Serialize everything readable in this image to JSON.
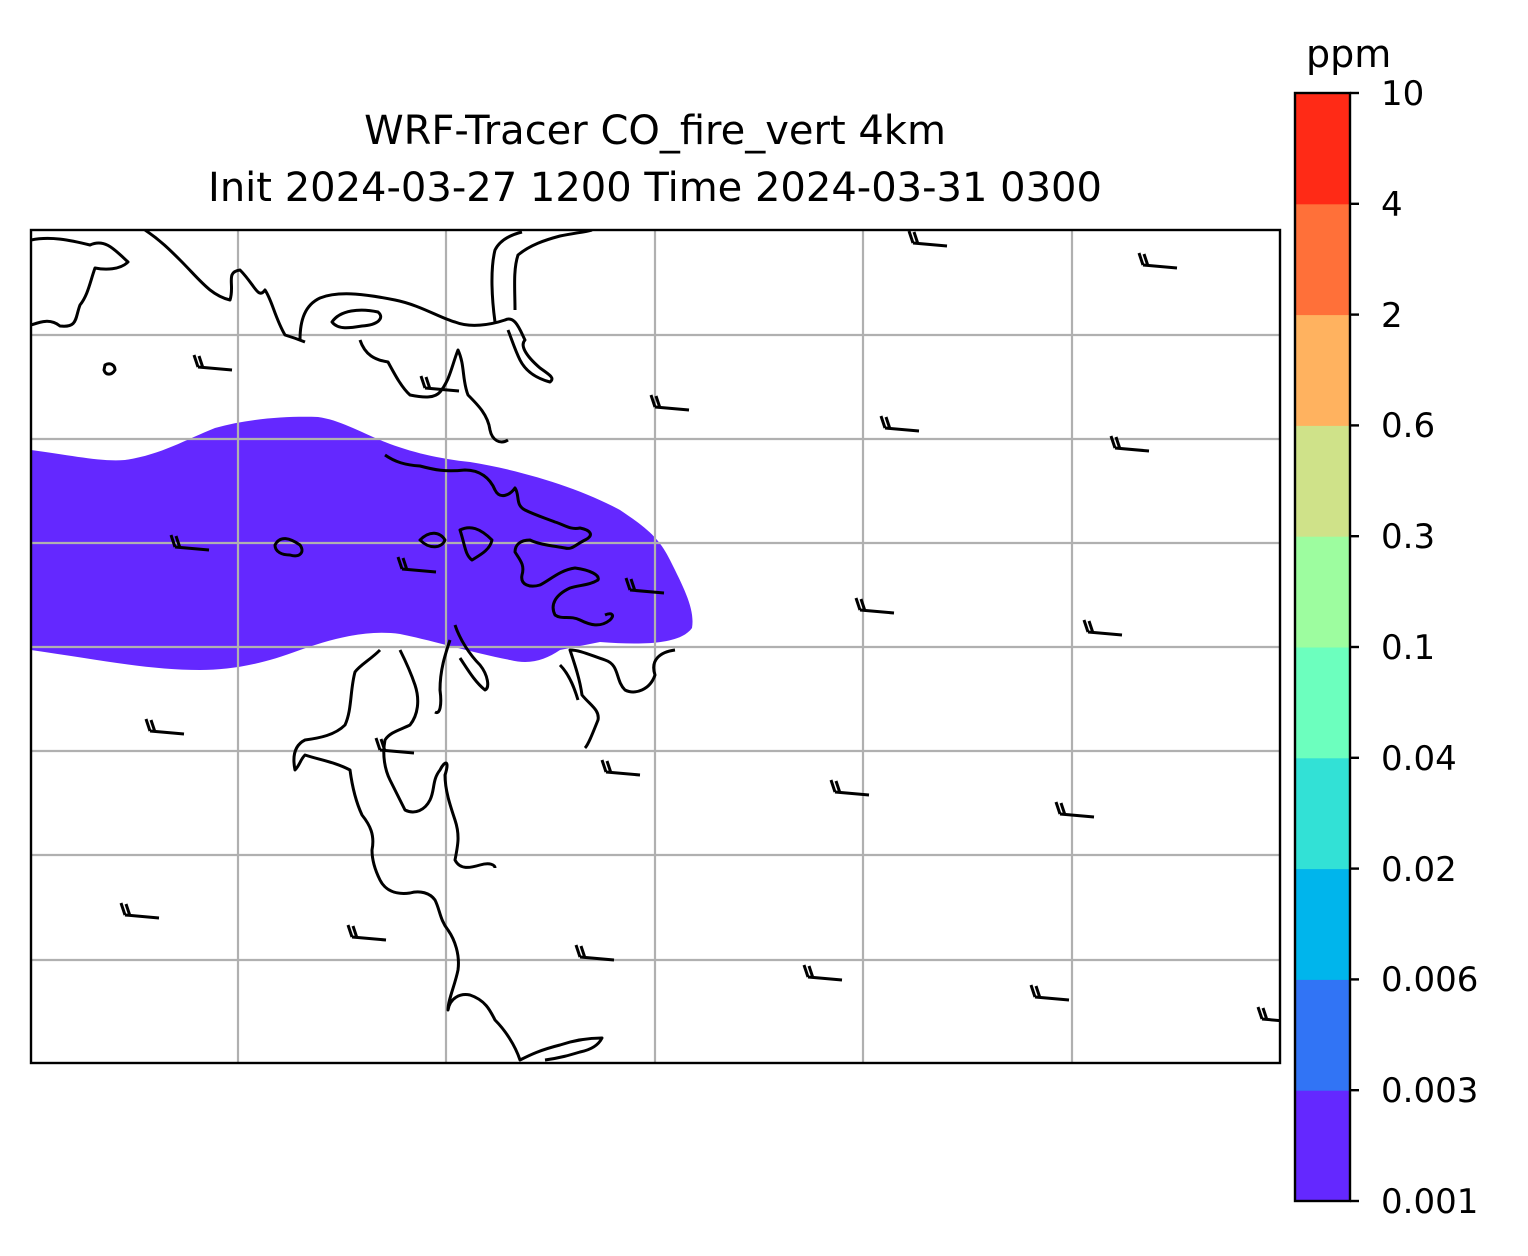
{
  "title": {
    "line1": "WRF-Tracer CO_fire_vert 4km",
    "line2": "Init 2024-03-27 1200 Time 2024-03-31 0300"
  },
  "colorbar": {
    "unit": "ppm",
    "levels": [
      "0.001",
      "0.003",
      "0.006",
      "0.02",
      "0.04",
      "0.1",
      "0.3",
      "0.6",
      "2",
      "4",
      "10"
    ],
    "colors": [
      "#6428ff",
      "#3174f5",
      "#00b5ec",
      "#32e1d6",
      "#6cffbe",
      "#9dfd9f",
      "#cfe289",
      "#ffb25f",
      "#ff7039",
      "#ff2a16"
    ]
  },
  "map": {
    "plume_color": "#6428ff",
    "coastline_color": "#000000",
    "gridline_color": "#b0b0b0"
  }
}
